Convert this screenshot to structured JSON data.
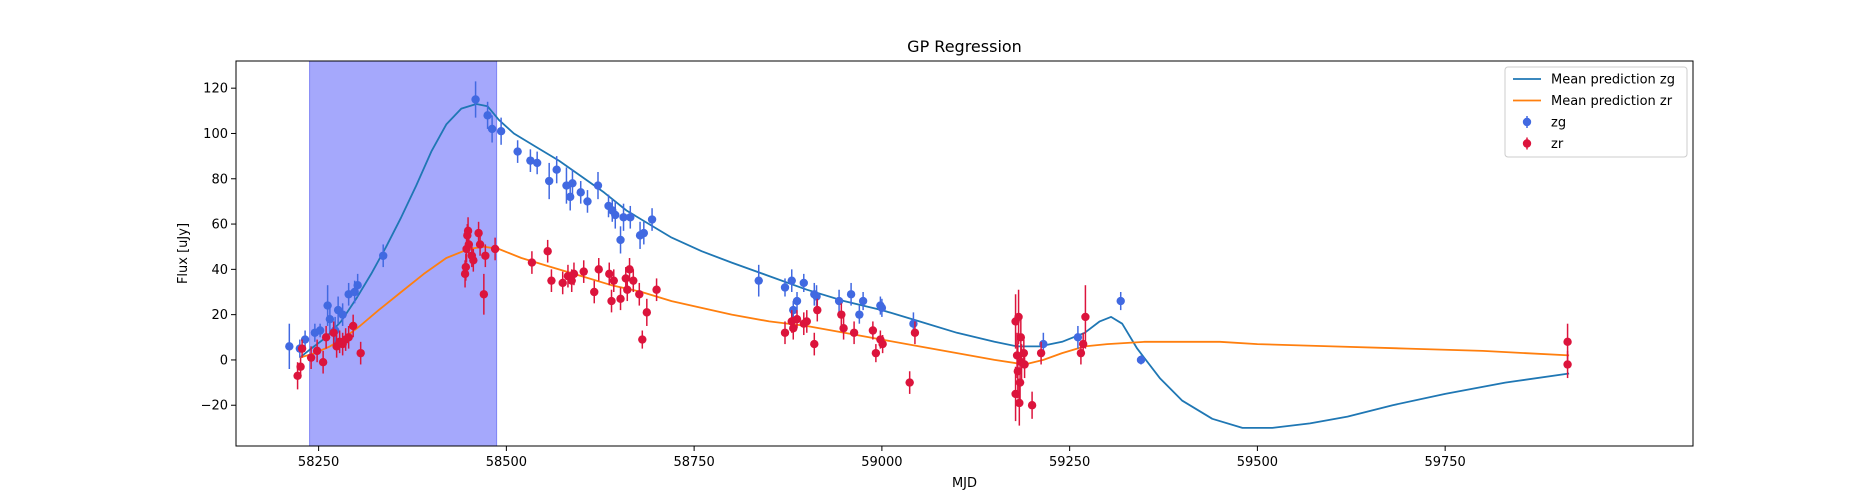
{
  "chart_data": {
    "type": "scatter",
    "title": "GP Regression",
    "xlabel": "MJD",
    "ylabel": "Flux [uJy]",
    "xlim": [
      58140,
      60080
    ],
    "ylim": [
      -38,
      132
    ],
    "xticks": [
      58250,
      58500,
      58750,
      59000,
      59250,
      59500,
      59750
    ],
    "yticks": [
      -20,
      0,
      20,
      40,
      60,
      80,
      100,
      120
    ],
    "grid": false,
    "legend_position": "top-right",
    "shaded_region": {
      "x0": 58238,
      "x1": 58487,
      "color": "#a5a8fc"
    },
    "lines": [
      {
        "name": "Mean prediction zg",
        "color": "#1f77b4",
        "points": [
          [
            58225,
            1
          ],
          [
            58240,
            5
          ],
          [
            58260,
            10
          ],
          [
            58280,
            17
          ],
          [
            58300,
            27
          ],
          [
            58320,
            38
          ],
          [
            58340,
            50
          ],
          [
            58360,
            63
          ],
          [
            58380,
            77
          ],
          [
            58400,
            92
          ],
          [
            58420,
            104
          ],
          [
            58440,
            111
          ],
          [
            58460,
            113
          ],
          [
            58475,
            112
          ],
          [
            58490,
            106
          ],
          [
            58510,
            100
          ],
          [
            58540,
            94
          ],
          [
            58570,
            88
          ],
          [
            58600,
            81
          ],
          [
            58630,
            74
          ],
          [
            58660,
            66
          ],
          [
            58690,
            60
          ],
          [
            58720,
            54
          ],
          [
            58760,
            48
          ],
          [
            58800,
            43
          ],
          [
            58850,
            37
          ],
          [
            58900,
            31
          ],
          [
            58950,
            26
          ],
          [
            59000,
            22
          ],
          [
            59050,
            17
          ],
          [
            59100,
            12
          ],
          [
            59150,
            8
          ],
          [
            59180,
            6
          ],
          [
            59210,
            6
          ],
          [
            59240,
            8
          ],
          [
            59270,
            12
          ],
          [
            59290,
            17
          ],
          [
            59305,
            19
          ],
          [
            59320,
            16
          ],
          [
            59340,
            5
          ],
          [
            59370,
            -8
          ],
          [
            59400,
            -18
          ],
          [
            59440,
            -26
          ],
          [
            59480,
            -30
          ],
          [
            59520,
            -30
          ],
          [
            59570,
            -28
          ],
          [
            59620,
            -25
          ],
          [
            59680,
            -20
          ],
          [
            59750,
            -15
          ],
          [
            59830,
            -10
          ],
          [
            59915,
            -6
          ]
        ]
      },
      {
        "name": "Mean prediction zr",
        "color": "#ff7f0e",
        "points": [
          [
            58225,
            1
          ],
          [
            58245,
            3
          ],
          [
            58265,
            6
          ],
          [
            58285,
            10
          ],
          [
            58305,
            15
          ],
          [
            58330,
            22
          ],
          [
            58360,
            30
          ],
          [
            58390,
            38
          ],
          [
            58420,
            45
          ],
          [
            58450,
            49
          ],
          [
            58470,
            50
          ],
          [
            58490,
            49
          ],
          [
            58520,
            45
          ],
          [
            58560,
            41
          ],
          [
            58600,
            37
          ],
          [
            58640,
            33
          ],
          [
            58680,
            30
          ],
          [
            58720,
            26
          ],
          [
            58760,
            23
          ],
          [
            58800,
            20
          ],
          [
            58850,
            17
          ],
          [
            58900,
            15
          ],
          [
            58950,
            12
          ],
          [
            59000,
            9
          ],
          [
            59050,
            6
          ],
          [
            59100,
            3
          ],
          [
            59150,
            0
          ],
          [
            59190,
            -2
          ],
          [
            59215,
            0
          ],
          [
            59240,
            3
          ],
          [
            59270,
            6
          ],
          [
            59300,
            7
          ],
          [
            59350,
            8
          ],
          [
            59400,
            8
          ],
          [
            59450,
            8
          ],
          [
            59500,
            7
          ],
          [
            59600,
            6
          ],
          [
            59700,
            5
          ],
          [
            59800,
            4
          ],
          [
            59915,
            2
          ]
        ]
      }
    ],
    "series": [
      {
        "name": "zg",
        "color": "#4169e1",
        "points": [
          [
            58211,
            6,
            10
          ],
          [
            58225,
            5,
            4
          ],
          [
            58232,
            9,
            4
          ],
          [
            58245,
            12,
            4
          ],
          [
            58252,
            13,
            3
          ],
          [
            58262,
            24,
            9
          ],
          [
            58265,
            18,
            6
          ],
          [
            58272,
            13,
            6
          ],
          [
            58276,
            22,
            6
          ],
          [
            58282,
            20,
            5
          ],
          [
            58290,
            29,
            5
          ],
          [
            58298,
            30,
            5
          ],
          [
            58302,
            33,
            5
          ],
          [
            58336,
            46,
            5
          ],
          [
            58459,
            115,
            8
          ],
          [
            58475,
            108,
            6
          ],
          [
            58481,
            102,
            6
          ],
          [
            58493,
            101,
            6
          ],
          [
            58515,
            92,
            5
          ],
          [
            58532,
            88,
            5
          ],
          [
            58541,
            87,
            5
          ],
          [
            58557,
            79,
            8
          ],
          [
            58567,
            84,
            6
          ],
          [
            58580,
            77,
            8
          ],
          [
            58585,
            72,
            6
          ],
          [
            58588,
            78,
            6
          ],
          [
            58599,
            74,
            5
          ],
          [
            58608,
            70,
            5
          ],
          [
            58622,
            77,
            6
          ],
          [
            58636,
            68,
            5
          ],
          [
            58641,
            66,
            5
          ],
          [
            58645,
            64,
            6
          ],
          [
            58652,
            53,
            6
          ],
          [
            58656,
            63,
            6
          ],
          [
            58665,
            63,
            5
          ],
          [
            58678,
            55,
            6
          ],
          [
            58683,
            56,
            5
          ],
          [
            58694,
            62,
            5
          ],
          [
            58836,
            35,
            7
          ],
          [
            58871,
            32,
            4
          ],
          [
            58880,
            35,
            5
          ],
          [
            58882,
            22,
            4
          ],
          [
            58887,
            26,
            4
          ],
          [
            58896,
            34,
            4
          ],
          [
            58910,
            29,
            5
          ],
          [
            58913,
            28,
            5
          ],
          [
            58943,
            26,
            5
          ],
          [
            58959,
            29,
            5
          ],
          [
            58970,
            20,
            4
          ],
          [
            58975,
            26,
            4
          ],
          [
            58998,
            24,
            4
          ],
          [
            59000,
            23,
            4
          ],
          [
            59042,
            16,
            5
          ],
          [
            59215,
            7,
            5
          ],
          [
            59261,
            10,
            5
          ],
          [
            59318,
            26,
            4
          ],
          [
            59345,
            0,
            2
          ]
        ]
      },
      {
        "name": "zr",
        "color": "#dc143c",
        "points": [
          [
            58222,
            -7,
            6
          ],
          [
            58226,
            -3,
            4
          ],
          [
            58228,
            5,
            4
          ],
          [
            58240,
            1,
            5
          ],
          [
            58248,
            4,
            5
          ],
          [
            58256,
            -1,
            5
          ],
          [
            58260,
            10,
            5
          ],
          [
            58270,
            12,
            5
          ],
          [
            58274,
            6,
            5
          ],
          [
            58278,
            8,
            5
          ],
          [
            58282,
            7,
            5
          ],
          [
            58286,
            9,
            5
          ],
          [
            58290,
            10,
            5
          ],
          [
            58296,
            15,
            5
          ],
          [
            58306,
            3,
            5
          ],
          [
            58445,
            38,
            6
          ],
          [
            58446,
            41,
            6
          ],
          [
            58447,
            49,
            6
          ],
          [
            58448,
            55,
            5
          ],
          [
            58449,
            57,
            6
          ],
          [
            58450,
            51,
            5
          ],
          [
            58454,
            46,
            5
          ],
          [
            58456,
            44,
            5
          ],
          [
            58463,
            56,
            5
          ],
          [
            58465,
            51,
            5
          ],
          [
            58470,
            29,
            9
          ],
          [
            58472,
            46,
            5
          ],
          [
            58485,
            49,
            5
          ],
          [
            58534,
            43,
            5
          ],
          [
            58555,
            48,
            5
          ],
          [
            58560,
            35,
            5
          ],
          [
            58575,
            34,
            5
          ],
          [
            58582,
            37,
            5
          ],
          [
            58587,
            35,
            5
          ],
          [
            58590,
            38,
            5
          ],
          [
            58603,
            39,
            5
          ],
          [
            58617,
            30,
            5
          ],
          [
            58623,
            40,
            5
          ],
          [
            58637,
            38,
            5
          ],
          [
            58640,
            26,
            5
          ],
          [
            58643,
            35,
            5
          ],
          [
            58652,
            27,
            5
          ],
          [
            58659,
            36,
            5
          ],
          [
            58661,
            31,
            5
          ],
          [
            58664,
            40,
            5
          ],
          [
            58669,
            35,
            5
          ],
          [
            58677,
            29,
            5
          ],
          [
            58681,
            9,
            4
          ],
          [
            58687,
            21,
            6
          ],
          [
            58700,
            31,
            5
          ],
          [
            58871,
            12,
            5
          ],
          [
            58880,
            17,
            5
          ],
          [
            58882,
            14,
            5
          ],
          [
            58887,
            18,
            4
          ],
          [
            58896,
            16,
            5
          ],
          [
            58900,
            17,
            5
          ],
          [
            58910,
            7,
            5
          ],
          [
            58914,
            22,
            5
          ],
          [
            58946,
            20,
            5
          ],
          [
            58949,
            14,
            5
          ],
          [
            58963,
            12,
            5
          ],
          [
            58988,
            13,
            4
          ],
          [
            58992,
            3,
            4
          ],
          [
            58998,
            9,
            4
          ],
          [
            59001,
            7,
            4
          ],
          [
            59037,
            -10,
            5
          ],
          [
            59044,
            12,
            5
          ],
          [
            59178,
            -15,
            12
          ],
          [
            59178,
            17,
            12
          ],
          [
            59180,
            2,
            10
          ],
          [
            59181,
            -5,
            12
          ],
          [
            59182,
            19,
            12
          ],
          [
            59183,
            -19,
            10
          ],
          [
            59184,
            -10,
            10
          ],
          [
            59185,
            10,
            10
          ],
          [
            59186,
            -1,
            8
          ],
          [
            59189,
            3,
            6
          ],
          [
            59190,
            -2,
            6
          ],
          [
            59200,
            -20,
            6
          ],
          [
            59212,
            3,
            5
          ],
          [
            59265,
            3,
            5
          ],
          [
            59268,
            7,
            5
          ],
          [
            59271,
            19,
            14
          ],
          [
            59913,
            8,
            8
          ],
          [
            59913,
            -2,
            6
          ]
        ]
      }
    ]
  },
  "legend": {
    "items": [
      {
        "label": "Mean prediction zg",
        "kind": "line",
        "color": "#1f77b4"
      },
      {
        "label": "Mean prediction zr",
        "kind": "line",
        "color": "#ff7f0e"
      },
      {
        "label": "zg",
        "kind": "marker",
        "color": "#4169e1"
      },
      {
        "label": "zr",
        "kind": "marker",
        "color": "#dc143c"
      }
    ]
  }
}
